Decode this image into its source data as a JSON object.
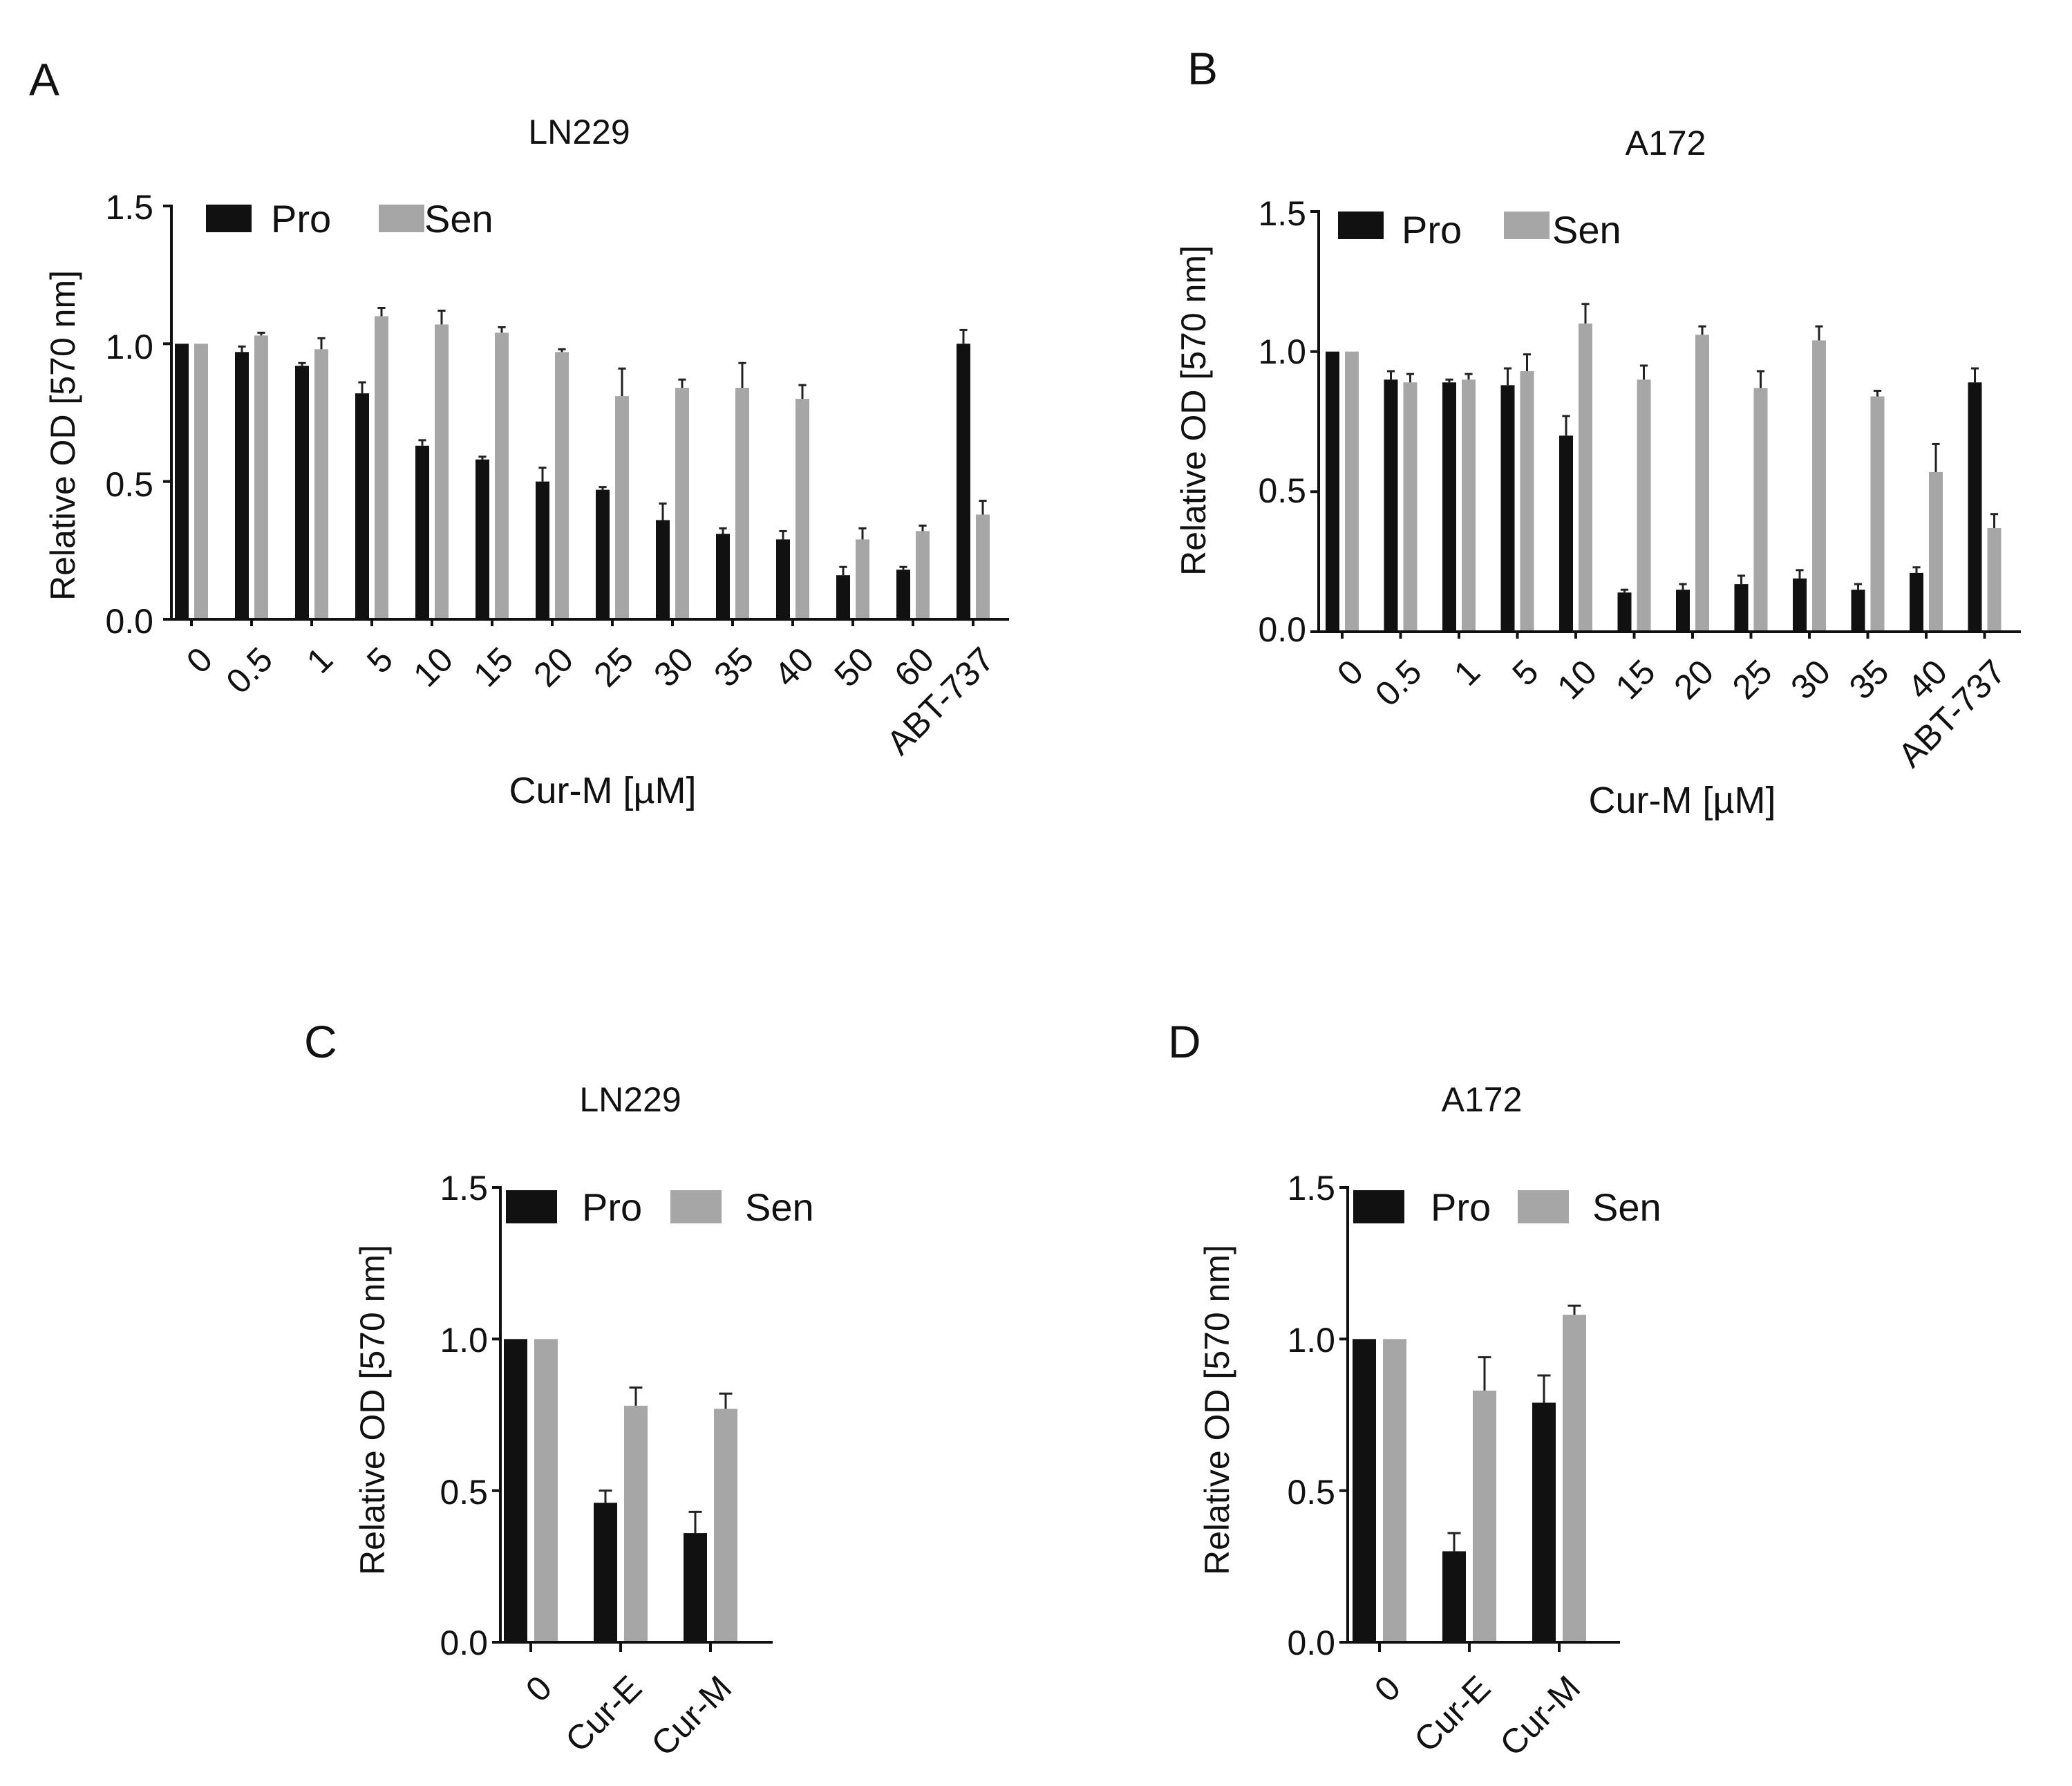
{
  "legend": {
    "pro": "Pro",
    "sen": "Sen"
  },
  "colors": {
    "pro": "#111111",
    "sen": "#a6a6a6",
    "axis": "#111111",
    "text": "#111111"
  },
  "chart_data": [
    {
      "type": "bar",
      "panel": "A",
      "title": "LN229",
      "xlabel": "Cur-M [µM]",
      "ylabel": "Relative OD [570 nm]",
      "ylim": [
        0,
        1.5
      ],
      "yticks": [
        "0.0",
        "0.5",
        "1.0",
        "1.5"
      ],
      "categories": [
        "0",
        "0.5",
        "1",
        "5",
        "10",
        "15",
        "20",
        "25",
        "30",
        "35",
        "40",
        "50",
        "60",
        "ABT-737"
      ],
      "series": [
        {
          "name": "Pro",
          "values": [
            1.0,
            0.97,
            0.92,
            0.82,
            0.63,
            0.58,
            0.5,
            0.47,
            0.36,
            0.31,
            0.29,
            0.16,
            0.18,
            1.0
          ],
          "errors": [
            0.0,
            0.02,
            0.01,
            0.04,
            0.02,
            0.01,
            0.05,
            0.01,
            0.06,
            0.02,
            0.03,
            0.03,
            0.01,
            0.05
          ]
        },
        {
          "name": "Sen",
          "values": [
            1.0,
            1.03,
            0.98,
            1.1,
            1.07,
            1.04,
            0.97,
            0.81,
            0.84,
            0.84,
            0.8,
            0.29,
            0.32,
            0.38
          ],
          "errors": [
            0.0,
            0.01,
            0.04,
            0.03,
            0.05,
            0.02,
            0.01,
            0.1,
            0.03,
            0.09,
            0.05,
            0.04,
            0.02,
            0.05
          ]
        }
      ]
    },
    {
      "type": "bar",
      "panel": "B",
      "title": "A172",
      "xlabel": "Cur-M [µM]",
      "ylabel": "Relative OD [570 nm]",
      "ylim": [
        0,
        1.5
      ],
      "yticks": [
        "0.0",
        "0.5",
        "1.0",
        "1.5"
      ],
      "categories": [
        "0",
        "0.5",
        "1",
        "5",
        "10",
        "15",
        "20",
        "25",
        "30",
        "35",
        "40",
        "ABT-737"
      ],
      "series": [
        {
          "name": "Pro",
          "values": [
            1.0,
            0.9,
            0.89,
            0.88,
            0.7,
            0.14,
            0.15,
            0.17,
            0.19,
            0.15,
            0.21,
            0.89
          ],
          "errors": [
            0.0,
            0.03,
            0.01,
            0.06,
            0.07,
            0.01,
            0.02,
            0.03,
            0.03,
            0.02,
            0.02,
            0.05
          ]
        },
        {
          "name": "Sen",
          "values": [
            1.0,
            0.89,
            0.9,
            0.93,
            1.1,
            0.9,
            1.06,
            0.87,
            1.04,
            0.84,
            0.57,
            0.37
          ],
          "errors": [
            0.0,
            0.03,
            0.02,
            0.06,
            0.07,
            0.05,
            0.03,
            0.06,
            0.05,
            0.02,
            0.1,
            0.05
          ]
        }
      ]
    },
    {
      "type": "bar",
      "panel": "C",
      "title": "LN229",
      "xlabel": "",
      "ylabel": "Relative OD [570 nm]",
      "ylim": [
        0,
        1.5
      ],
      "yticks": [
        "0.0",
        "0.5",
        "1.0",
        "1.5"
      ],
      "categories": [
        "0",
        "Cur-E",
        "Cur-M"
      ],
      "series": [
        {
          "name": "Pro",
          "values": [
            1.0,
            0.46,
            0.36
          ],
          "errors": [
            0.0,
            0.04,
            0.07
          ]
        },
        {
          "name": "Sen",
          "values": [
            1.0,
            0.78,
            0.77
          ],
          "errors": [
            0.0,
            0.06,
            0.05
          ]
        }
      ]
    },
    {
      "type": "bar",
      "panel": "D",
      "title": "A172",
      "xlabel": "",
      "ylabel": "Relative OD [570 nm]",
      "ylim": [
        0,
        1.5
      ],
      "yticks": [
        "0.0",
        "0.5",
        "1.0",
        "1.5"
      ],
      "categories": [
        "0",
        "Cur-E",
        "Cur-M"
      ],
      "series": [
        {
          "name": "Pro",
          "values": [
            1.0,
            0.3,
            0.79
          ],
          "errors": [
            0.0,
            0.06,
            0.09
          ]
        },
        {
          "name": "Sen",
          "values": [
            1.0,
            0.83,
            1.08
          ],
          "errors": [
            0.0,
            0.11,
            0.03
          ]
        }
      ]
    }
  ]
}
